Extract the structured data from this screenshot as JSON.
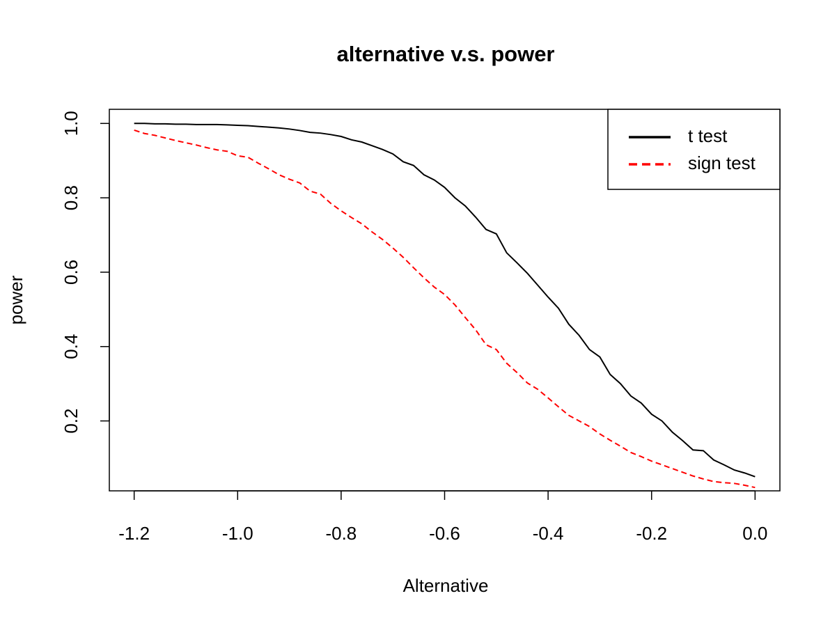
{
  "chart_data": {
    "type": "line",
    "title": "alternative v.s. power",
    "x_label": "Alternative",
    "y_label": "power",
    "x": [
      -1.2,
      -1.18,
      -1.16,
      -1.14,
      -1.12,
      -1.1,
      -1.08,
      -1.06,
      -1.04,
      -1.02,
      -1.0,
      -0.98,
      -0.96,
      -0.94,
      -0.92,
      -0.9,
      -0.88,
      -0.86,
      -0.84,
      -0.82,
      -0.8,
      -0.78,
      -0.76,
      -0.74,
      -0.72,
      -0.7,
      -0.68,
      -0.66,
      -0.64,
      -0.62,
      -0.6,
      -0.58,
      -0.56,
      -0.54,
      -0.52,
      -0.5,
      -0.48,
      -0.46,
      -0.44,
      -0.42,
      -0.4,
      -0.38,
      -0.36,
      -0.34,
      -0.32,
      -0.3,
      -0.28,
      -0.26,
      -0.24,
      -0.22,
      -0.2,
      -0.18,
      -0.16,
      -0.14,
      -0.12,
      -0.1,
      -0.08,
      -0.06,
      -0.04,
      -0.02,
      0
    ],
    "series": [
      {
        "name": "t test",
        "color": "#000000",
        "dash": "solid",
        "values": [
          1.0,
          1.0,
          0.999,
          0.999,
          0.998,
          0.998,
          0.997,
          0.997,
          0.997,
          0.996,
          0.995,
          0.994,
          0.992,
          0.99,
          0.988,
          0.985,
          0.981,
          0.976,
          0.974,
          0.97,
          0.965,
          0.956,
          0.95,
          0.94,
          0.93,
          0.918,
          0.897,
          0.887,
          0.862,
          0.848,
          0.828,
          0.8,
          0.778,
          0.748,
          0.715,
          0.703,
          0.652,
          0.625,
          0.597,
          0.565,
          0.533,
          0.503,
          0.46,
          0.43,
          0.392,
          0.372,
          0.325,
          0.3,
          0.267,
          0.248,
          0.218,
          0.2,
          0.17,
          0.147,
          0.122,
          0.12,
          0.095,
          0.082,
          0.068,
          0.06,
          0.05
        ]
      },
      {
        "name": "sign test",
        "color": "#ff0000",
        "dash": "dashed",
        "values": [
          0.982,
          0.973,
          0.968,
          0.961,
          0.954,
          0.948,
          0.942,
          0.935,
          0.929,
          0.925,
          0.913,
          0.909,
          0.893,
          0.878,
          0.862,
          0.85,
          0.84,
          0.818,
          0.81,
          0.785,
          0.765,
          0.747,
          0.73,
          0.708,
          0.688,
          0.665,
          0.64,
          0.612,
          0.585,
          0.56,
          0.54,
          0.512,
          0.478,
          0.445,
          0.405,
          0.392,
          0.355,
          0.33,
          0.302,
          0.285,
          0.262,
          0.238,
          0.215,
          0.2,
          0.185,
          0.165,
          0.148,
          0.132,
          0.115,
          0.104,
          0.092,
          0.082,
          0.072,
          0.062,
          0.052,
          0.044,
          0.037,
          0.034,
          0.032,
          0.027,
          0.021
        ]
      }
    ],
    "xlim": [
      -1.248,
      0.048
    ],
    "ylim": [
      0.012,
      1.038
    ],
    "xticks": [
      -1.2,
      {
        "value": -1.0,
        "label": "-1.0"
      },
      -0.8,
      -0.6,
      -0.4,
      -0.2,
      {
        "value": 0,
        "label": "0.0"
      }
    ],
    "yticks": [
      0.2,
      0.4,
      0.6,
      0.8,
      {
        "value": 1,
        "label": "1.0"
      }
    ],
    "legend": "top-right"
  }
}
